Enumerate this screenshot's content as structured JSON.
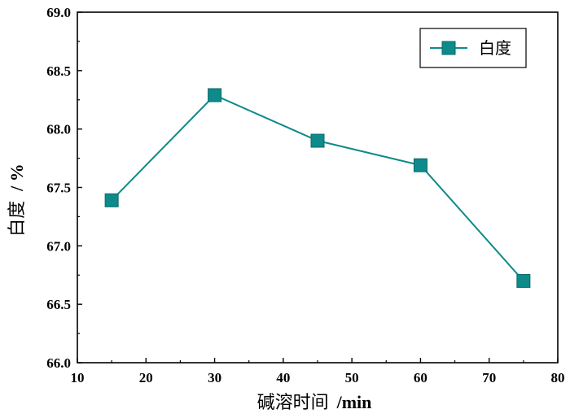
{
  "chart_data": {
    "type": "line",
    "x": [
      15,
      30,
      45,
      60,
      75
    ],
    "series": [
      {
        "name": "白度",
        "values": [
          67.39,
          68.29,
          67.9,
          67.69,
          66.7
        ],
        "color": "#0e8a8a"
      }
    ],
    "xlabel": "碱溶时间",
    "xlabel_unit": "/min",
    "ylabel": "白度",
    "ylabel_unit": "/ %",
    "xlim": [
      10,
      80
    ],
    "ylim": [
      66.0,
      69.0
    ],
    "xticks": [
      "10",
      "20",
      "30",
      "40",
      "50",
      "60",
      "70",
      "80"
    ],
    "yticks": [
      "66.0",
      "66.5",
      "67.0",
      "67.5",
      "68.0",
      "68.5",
      "69.0"
    ],
    "grid": false,
    "legend_position": "top-right",
    "marker": "square"
  }
}
